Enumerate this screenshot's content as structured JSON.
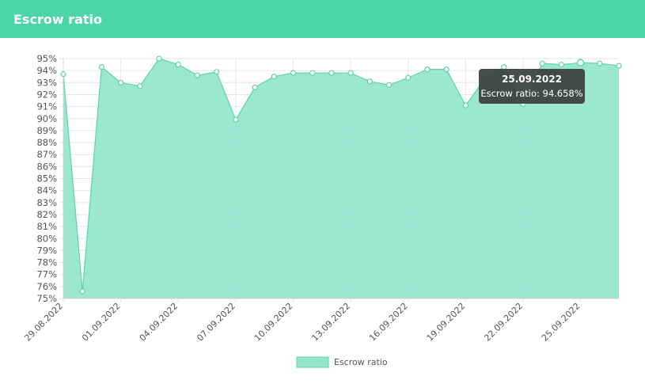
{
  "header": {
    "title": "Escrow ratio"
  },
  "colors": {
    "header": "#4cd6a6",
    "area_fill": "#96e6cd",
    "line": "#5fd3aa",
    "point_stroke": "#5fd3aa",
    "tooltip_bg": "#3a3f3d"
  },
  "chart_data": {
    "type": "area",
    "title": "",
    "xlabel": "",
    "ylabel": "",
    "ylim": [
      75,
      95
    ],
    "y_ticks": [
      "95%",
      "94%",
      "93%",
      "92%",
      "91%",
      "90%",
      "89%",
      "88%",
      "87%",
      "86%",
      "85%",
      "84%",
      "83%",
      "82%",
      "81%",
      "80%",
      "79%",
      "78%",
      "77%",
      "76%",
      "75%"
    ],
    "x_tick_labels": [
      "29.08.2022",
      "01.09.2022",
      "04.09.2022",
      "07.09.2022",
      "10.09.2022",
      "13.09.2022",
      "16.09.2022",
      "19.09.2022",
      "22.09.2022",
      "25.09.2022"
    ],
    "grid": true,
    "legend_position": "bottom",
    "x": [
      "29.08.2022",
      "30.08.2022",
      "31.08.2022",
      "01.09.2022",
      "02.09.2022",
      "03.09.2022",
      "04.09.2022",
      "05.09.2022",
      "06.09.2022",
      "07.09.2022",
      "08.09.2022",
      "09.09.2022",
      "10.09.2022",
      "11.09.2022",
      "12.09.2022",
      "13.09.2022",
      "14.09.2022",
      "15.09.2022",
      "16.09.2022",
      "17.09.2022",
      "18.09.2022",
      "19.09.2022",
      "20.09.2022",
      "21.09.2022",
      "22.09.2022",
      "23.09.2022",
      "24.09.2022",
      "25.09.2022",
      "26.09.2022",
      "27.09.2022"
    ],
    "series": [
      {
        "name": "Escrow ratio",
        "values": [
          93.7,
          75.6,
          94.3,
          93.0,
          92.7,
          95.0,
          94.5,
          93.6,
          93.9,
          89.9,
          92.6,
          93.5,
          93.8,
          93.8,
          93.8,
          93.8,
          93.1,
          92.8,
          93.4,
          94.1,
          94.1,
          91.1,
          93.3,
          94.3,
          91.2,
          94.6,
          94.5,
          94.658,
          94.6,
          94.4
        ]
      }
    ],
    "tooltip": {
      "index": 27,
      "title": "25.09.2022",
      "body": "Escrow ratio: 94.658%"
    }
  }
}
